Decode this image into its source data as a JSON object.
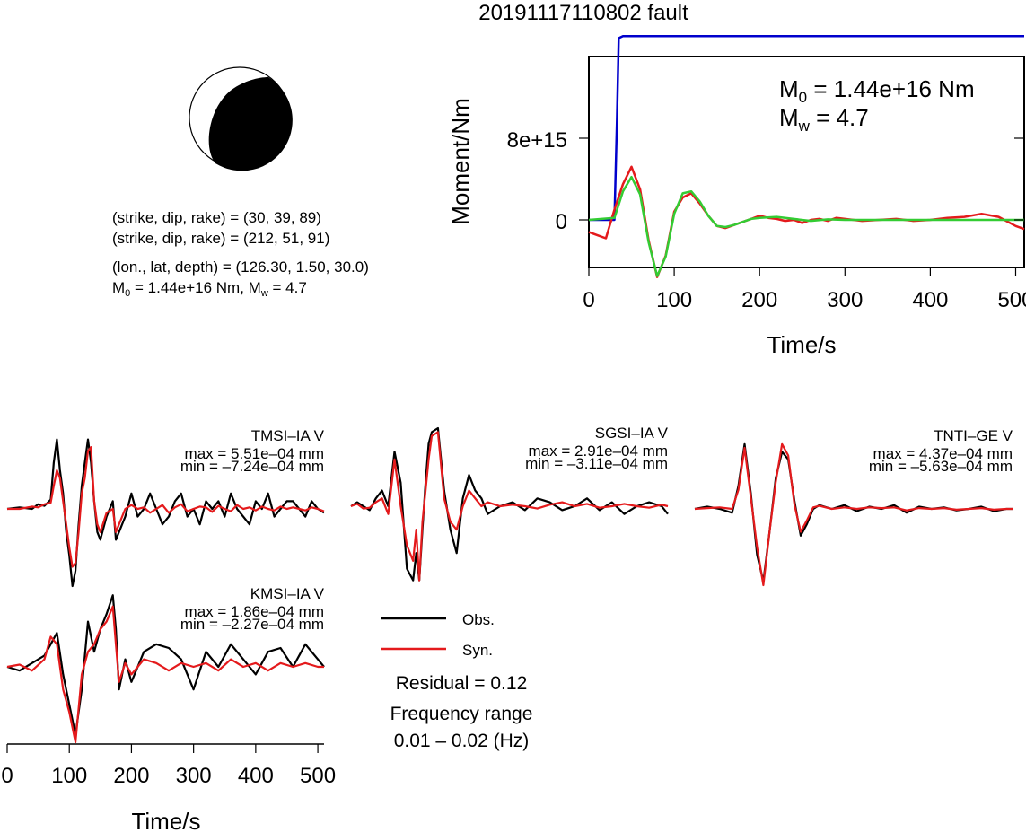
{
  "title": "20191117110802 fault",
  "mechanism": {
    "line1": "(strike, dip, rake) = (30, 39, 89)",
    "line2": "(strike, dip, rake) = (212, 51, 91)",
    "line3": "(lon., lat, depth) = (126.30, 1.50, 30.0)",
    "m0_text": " = 1.44e+16 Nm, ",
    "mw_text": " = 4.7"
  },
  "moment_panel": {
    "ylabel": "Moment/Nm",
    "xlabel": "Time/s",
    "m0_text": " = 1.44e+16 Nm",
    "mw_text": " = 4.7",
    "ytick_labels": [
      "8e+15",
      "0"
    ],
    "xtick_labels": [
      "0",
      "100",
      "200",
      "300",
      "400",
      "500"
    ]
  },
  "legend": {
    "obs": "Obs.",
    "syn": "Syn.",
    "residual": "Residual = 0.12",
    "freq_title": "Frequency range",
    "freq_value": "0.01 – 0.02 (Hz)"
  },
  "waveform_axis": {
    "xlabel": "Time/s",
    "xtick_labels": [
      "0",
      "100",
      "200",
      "300",
      "400",
      "500"
    ]
  },
  "colors": {
    "obs": "#000000",
    "syn": "#e41a1c",
    "moment": "#0000cc",
    "stf_fit": "#33cc33"
  },
  "chart_data": [
    {
      "type": "line",
      "name": "moment-function",
      "xlabel": "Time/s",
      "ylabel": "Moment/Nm",
      "xlim": [
        0,
        510
      ],
      "ylim": [
        -6000000000000000.0,
        1.9e+16
      ],
      "series": [
        {
          "color": "blue",
          "x": [
            0,
            30,
            33,
            35,
            40,
            60,
            200,
            510
          ],
          "y": [
            0,
            0,
            1e+16,
            1.78e+16,
            1.8e+16,
            1.8e+16,
            1.8e+16,
            1.8e+16
          ]
        },
        {
          "color": "red",
          "x": [
            0,
            10,
            20,
            30,
            40,
            50,
            60,
            70,
            80,
            90,
            100,
            110,
            120,
            130,
            140,
            150,
            160,
            170,
            180,
            190,
            200,
            210,
            220,
            230,
            240,
            250,
            260,
            270,
            280,
            290,
            300,
            320,
            340,
            360,
            380,
            400,
            420,
            440,
            460,
            480,
            500,
            510
          ],
          "y": [
            -1200000000000000.0,
            -1500000000000000.0,
            -1800000000000000.0,
            1000000000000000.0,
            3500000000000000.0,
            5200000000000000.0,
            3000000000000000.0,
            -2000000000000000.0,
            -5600000000000000.0,
            -3500000000000000.0,
            800000000000000.0,
            2200000000000000.0,
            2600000000000000.0,
            1600000000000000.0,
            400000000000000.0,
            -600000000000000.0,
            -800000000000000.0,
            -500000000000000.0,
            -200000000000000.0,
            100000000000000.0,
            400000000000000.0,
            200000000000000.0,
            100000000000000.0,
            -100000000000000.0,
            0.0,
            -300000000000000.0,
            0.0,
            100000000000000.0,
            -100000000000000.0,
            200000000000000.0,
            100000000000000.0,
            -100000000000000.0,
            0.0,
            100000000000000.0,
            -100000000000000.0,
            0.0,
            200000000000000.0,
            300000000000000.0,
            600000000000000.0,
            300000000000000.0,
            -600000000000000.0,
            -900000000000000.0
          ]
        },
        {
          "color": "green",
          "x": [
            0,
            30,
            40,
            50,
            60,
            70,
            80,
            90,
            100,
            110,
            120,
            130,
            140,
            150,
            160,
            170,
            180,
            190,
            200,
            220,
            240,
            260,
            280,
            300,
            350,
            400,
            450,
            510
          ],
          "y": [
            0,
            200000000000000.0,
            2800000000000000.0,
            4200000000000000.0,
            2500000000000000.0,
            -2200000000000000.0,
            -5500000000000000.0,
            -3600000000000000.0,
            600000000000000.0,
            2600000000000000.0,
            2800000000000000.0,
            1800000000000000.0,
            400000000000000.0,
            -600000000000000.0,
            -700000000000000.0,
            -500000000000000.0,
            -200000000000000.0,
            100000000000000.0,
            200000000000000.0,
            300000000000000.0,
            100000000000000.0,
            -100000000000000.0,
            50000000000000.0,
            0.0,
            0.0,
            0.0,
            0.0,
            0.0
          ]
        }
      ]
    },
    {
      "type": "line",
      "name": "waveforms",
      "xlabel": "Time/s",
      "xlim": [
        0,
        510
      ],
      "stations": [
        {
          "label": "TMSI–IA V",
          "max": "max = 5.51e–04 mm",
          "min": "min = –7.24e–04 mm",
          "x": [
            0,
            20,
            40,
            50,
            60,
            70,
            75,
            80,
            85,
            90,
            95,
            100,
            105,
            110,
            115,
            120,
            125,
            130,
            135,
            140,
            145,
            150,
            160,
            170,
            175,
            180,
            190,
            200,
            210,
            220,
            230,
            240,
            250,
            260,
            270,
            280,
            290,
            300,
            310,
            320,
            330,
            340,
            350,
            360,
            370,
            380,
            390,
            400,
            410,
            420,
            430,
            440,
            450,
            460,
            470,
            480,
            490,
            500,
            510
          ],
          "obs": [
            0,
            0.02,
            0.0,
            0.06,
            0.04,
            0.12,
            0.6,
            0.9,
            0.5,
            0.2,
            -0.3,
            -0.6,
            -1.0,
            -0.8,
            -0.2,
            0.3,
            0.6,
            0.9,
            0.6,
            0.1,
            -0.3,
            -0.4,
            -0.1,
            0.1,
            -0.4,
            -0.3,
            -0.1,
            0.2,
            -0.1,
            0.0,
            0.2,
            0.0,
            -0.2,
            -0.1,
            0.1,
            0.2,
            -0.1,
            0.0,
            -0.2,
            0.1,
            0.0,
            0.1,
            -0.1,
            0.2,
            0.0,
            -0.1,
            -0.2,
            0.1,
            0.0,
            0.2,
            -0.1,
            0.0,
            0.1,
            0.1,
            0.0,
            -0.1,
            0.1,
            0.0,
            -0.05
          ],
          "syn": [
            0,
            0.0,
            0.03,
            0.02,
            0.06,
            0.08,
            0.3,
            0.5,
            0.4,
            0.1,
            -0.2,
            -0.5,
            -0.75,
            -0.7,
            -0.3,
            0.2,
            0.4,
            0.75,
            0.8,
            0.1,
            -0.2,
            -0.3,
            -0.05,
            0.0,
            -0.3,
            -0.2,
            0.0,
            0.05,
            0.0,
            0.02,
            -0.05,
            0.0,
            0.05,
            -0.05,
            0.02,
            0.06,
            -0.03,
            0.0,
            0.03,
            0.02,
            -0.04,
            0.04,
            0.0,
            -0.03,
            0.05,
            0.0,
            0.02,
            -0.02,
            0.03,
            0.0,
            -0.02,
            0.03,
            0.0,
            0.02,
            0.0,
            -0.02,
            0.02,
            0.0,
            -0.03
          ]
        },
        {
          "label": "SGSI–IA V",
          "max": "max = 2.91e–04 mm",
          "min": "min = –3.11e–04 mm",
          "x": [
            0,
            10,
            20,
            30,
            40,
            50,
            60,
            70,
            80,
            90,
            100,
            105,
            110,
            115,
            120,
            125,
            130,
            140,
            150,
            160,
            170,
            180,
            190,
            200,
            210,
            220,
            240,
            260,
            280,
            300,
            320,
            340,
            360,
            380,
            400,
            420,
            440,
            460,
            480,
            500,
            510
          ],
          "obs": [
            0.0,
            0.05,
            0.0,
            -0.05,
            0.1,
            0.2,
            0.0,
            0.7,
            0.3,
            -0.8,
            -0.95,
            -0.6,
            -0.95,
            -0.3,
            0.3,
            0.8,
            0.95,
            1.0,
            0.2,
            -0.3,
            -0.6,
            0.1,
            0.4,
            0.2,
            0.1,
            -0.1,
            0.0,
            0.05,
            -0.05,
            0.1,
            0.05,
            -0.05,
            0.0,
            0.1,
            -0.05,
            0.05,
            -0.1,
            0.0,
            0.05,
            0.0,
            -0.1
          ],
          "syn": [
            0.0,
            0.03,
            -0.03,
            -0.02,
            0.05,
            0.1,
            -0.1,
            0.6,
            0.0,
            -0.5,
            -0.7,
            -0.3,
            -0.95,
            -0.2,
            0.2,
            0.6,
            0.9,
            0.95,
            0.1,
            -0.2,
            -0.3,
            0.0,
            0.2,
            0.1,
            0.0,
            0.05,
            0.0,
            0.02,
            0.0,
            -0.03,
            0.02,
            0.05,
            0.0,
            0.03,
            -0.02,
            0.0,
            0.03,
            0.0,
            -0.02,
            0.02,
            0.0
          ]
        },
        {
          "label": "TNTI–GE V",
          "max": "max = 4.37e–04 mm",
          "min": "min = –5.63e–04 mm",
          "x": [
            0,
            20,
            40,
            60,
            70,
            80,
            90,
            100,
            110,
            120,
            130,
            140,
            150,
            160,
            170,
            180,
            190,
            200,
            220,
            240,
            260,
            280,
            300,
            320,
            340,
            360,
            380,
            400,
            420,
            440,
            460,
            480,
            500,
            510
          ],
          "obs": [
            0.0,
            0.03,
            0.0,
            -0.05,
            0.3,
            0.85,
            0.2,
            -0.6,
            -0.95,
            -0.3,
            0.4,
            0.75,
            0.65,
            0.1,
            -0.35,
            -0.2,
            0.0,
            0.05,
            0.0,
            0.05,
            -0.03,
            0.03,
            0.0,
            0.05,
            -0.05,
            0.03,
            0.0,
            0.02,
            -0.02,
            0.0,
            0.03,
            -0.03,
            0.0,
            0.0
          ],
          "syn": [
            0.0,
            0.01,
            0.02,
            0.0,
            0.25,
            0.8,
            0.15,
            -0.5,
            -1.0,
            -0.3,
            0.35,
            0.85,
            0.7,
            0.05,
            -0.3,
            -0.15,
            0.02,
            0.04,
            0.0,
            0.02,
            0.0,
            0.02,
            0.01,
            0.02,
            -0.02,
            0.01,
            0.0,
            0.01,
            -0.01,
            0.0,
            0.01,
            -0.01,
            0.0,
            0.0
          ]
        },
        {
          "label": "KMSI–IA V",
          "max": "max = 1.86e–04 mm",
          "min": "min = –2.27e–04 mm",
          "x": [
            0,
            20,
            40,
            60,
            70,
            80,
            90,
            100,
            110,
            120,
            130,
            140,
            150,
            160,
            170,
            175,
            180,
            190,
            200,
            210,
            220,
            240,
            260,
            280,
            300,
            320,
            340,
            360,
            380,
            400,
            420,
            440,
            460,
            480,
            500,
            510
          ],
          "obs": [
            0.0,
            -0.05,
            0.05,
            0.15,
            0.3,
            0.45,
            -0.1,
            -0.5,
            -0.9,
            -0.3,
            0.6,
            0.2,
            0.5,
            0.7,
            0.95,
            0.5,
            -0.3,
            0.1,
            -0.2,
            0.0,
            0.2,
            0.3,
            0.25,
            0.1,
            -0.3,
            0.2,
            0.0,
            0.3,
            0.1,
            -0.1,
            0.2,
            0.25,
            0.0,
            0.3,
            0.1,
            0.0
          ],
          "syn": [
            0.0,
            0.03,
            -0.05,
            0.1,
            0.4,
            0.3,
            -0.3,
            -0.6,
            -1.0,
            -0.1,
            0.2,
            0.3,
            0.5,
            0.6,
            0.8,
            0.3,
            -0.2,
            0.05,
            -0.1,
            0.0,
            0.1,
            0.05,
            -0.05,
            0.05,
            0.0,
            0.05,
            -0.05,
            0.1,
            0.0,
            0.05,
            -0.05,
            0.05,
            0.0,
            0.05,
            0.0,
            0.0
          ]
        }
      ]
    }
  ]
}
